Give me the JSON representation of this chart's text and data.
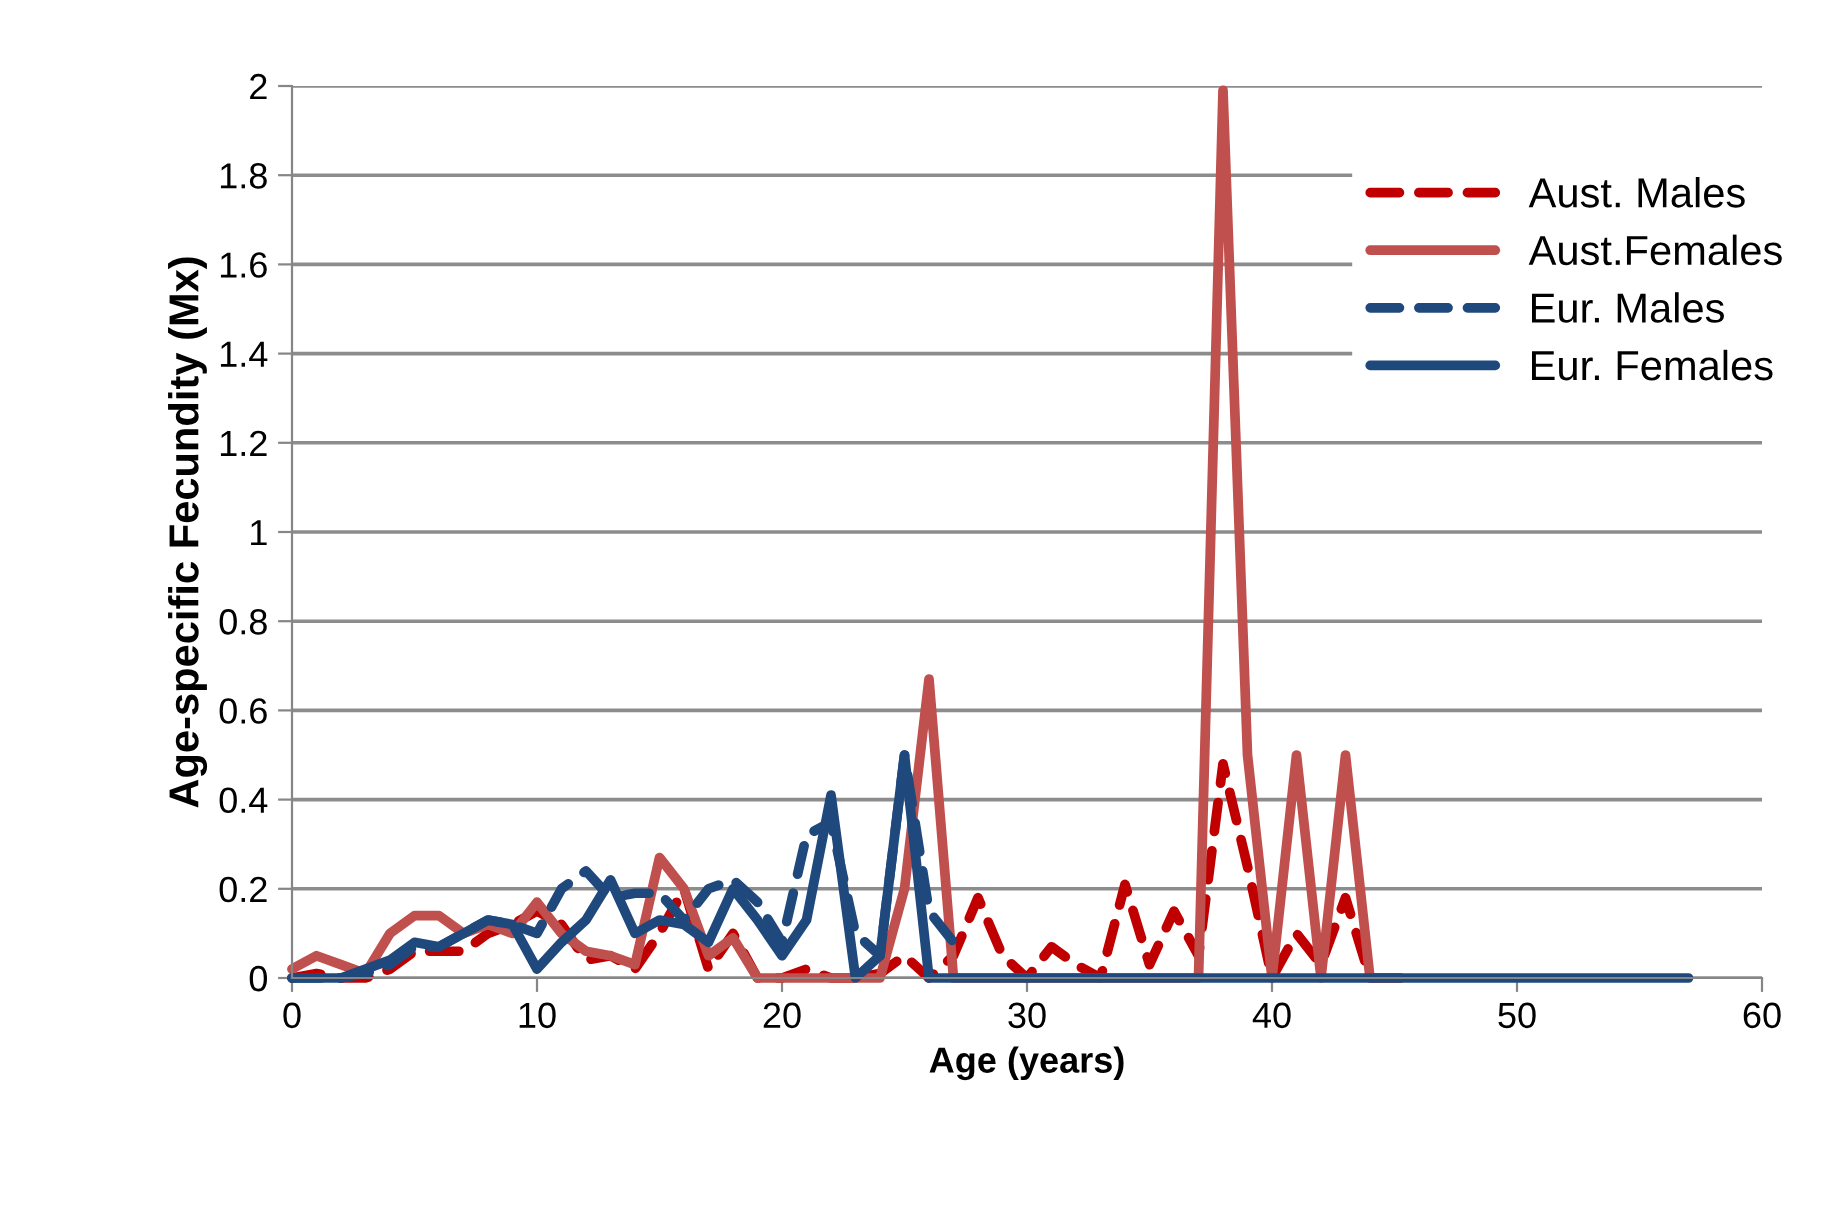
{
  "chart_data": {
    "type": "line",
    "xlabel": "Age (years)",
    "ylabel": "Age-specific Fecundity (Mx)",
    "xlim": [
      0,
      60
    ],
    "xticks": [
      0,
      10,
      20,
      30,
      40,
      50,
      60
    ],
    "ylim": [
      0,
      2
    ],
    "yticks": [
      0,
      0.2,
      0.4,
      0.6,
      0.8,
      1,
      1.2,
      1.4,
      1.6,
      1.8,
      2
    ],
    "grid": "y",
    "legend": "top right",
    "marker": "none",
    "series": [
      {
        "name": "Aust. Males",
        "color": "#c00000",
        "line_style": "dashed",
        "x": [
          0,
          1,
          2,
          3,
          4,
          5,
          6,
          7,
          8,
          9,
          10,
          11,
          12,
          13,
          14,
          15,
          16,
          17,
          18,
          19,
          20,
          21,
          22,
          23,
          24,
          25,
          26,
          27,
          28,
          29,
          30,
          31,
          32,
          33,
          34,
          35,
          36,
          37,
          38,
          39,
          40,
          41,
          42,
          43,
          44,
          45,
          46
        ],
        "values": [
          0,
          0.01,
          0,
          0,
          0.02,
          0.06,
          0.06,
          0.06,
          0.1,
          0.12,
          0.15,
          0.12,
          0.04,
          0.05,
          0.02,
          0.1,
          0.2,
          0.02,
          0.1,
          0,
          0,
          0.02,
          0,
          0,
          0.01,
          0.05,
          0,
          0.05,
          0.18,
          0.05,
          0,
          0.07,
          0.03,
          0,
          0.21,
          0.03,
          0.15,
          0.05,
          0.48,
          0.25,
          0,
          0.1,
          0.03,
          0.18,
          0,
          0,
          0
        ]
      },
      {
        "name": "Aust.Females",
        "color": "#c0504d",
        "line_style": "solid",
        "x": [
          0,
          1,
          2,
          3,
          4,
          5,
          6,
          7,
          8,
          9,
          10,
          11,
          12,
          13,
          14,
          15,
          16,
          17,
          18,
          19,
          20,
          21,
          22,
          23,
          24,
          25,
          26,
          27,
          28,
          29,
          30,
          31,
          32,
          33,
          34,
          35,
          36,
          37,
          38,
          39,
          40,
          41,
          42,
          43,
          44,
          45
        ],
        "values": [
          0.02,
          0.05,
          0.03,
          0.01,
          0.1,
          0.14,
          0.14,
          0.1,
          0.12,
          0.1,
          0.17,
          0.1,
          0.06,
          0.05,
          0.03,
          0.27,
          0.2,
          0.05,
          0.09,
          0,
          0,
          0,
          0,
          0,
          0,
          0.2,
          0.67,
          0,
          0,
          0,
          0,
          0,
          0,
          0,
          0,
          0,
          0,
          0,
          1.99,
          0.5,
          0,
          0.5,
          0,
          0.5,
          0,
          0
        ]
      },
      {
        "name": "Eur. Males",
        "color": "#1f497d",
        "line_style": "dashed",
        "x": [
          0,
          1,
          2,
          3,
          4,
          5,
          6,
          7,
          8,
          9,
          10,
          11,
          12,
          13,
          14,
          15,
          16,
          17,
          18,
          19,
          20,
          21,
          22,
          23,
          24,
          25,
          26,
          27
        ],
        "values": [
          0,
          0,
          0,
          0.01,
          0.03,
          0.07,
          0.07,
          0.1,
          0.13,
          0.12,
          0.1,
          0.2,
          0.24,
          0.18,
          0.19,
          0.19,
          0.13,
          0.2,
          0.22,
          0.17,
          0.08,
          0.32,
          0.35,
          0.1,
          0.05,
          0.5,
          0.15,
          0.08
        ]
      },
      {
        "name": "Eur. Females",
        "color": "#1f497d",
        "line_style": "solid",
        "x": [
          0,
          1,
          2,
          3,
          4,
          5,
          6,
          7,
          8,
          9,
          10,
          11,
          12,
          13,
          14,
          15,
          16,
          17,
          18,
          19,
          20,
          21,
          22,
          23,
          24,
          25,
          26,
          27,
          28,
          29,
          30,
          31,
          32,
          33,
          34,
          35,
          36,
          37,
          38,
          39,
          40,
          41,
          42,
          43,
          44,
          45,
          46,
          47,
          48,
          49,
          50,
          51,
          52,
          53,
          54,
          55,
          56,
          57
        ],
        "values": [
          0,
          0,
          0,
          0.02,
          0.04,
          0.08,
          0.07,
          0.1,
          0.13,
          0.12,
          0.02,
          0.08,
          0.13,
          0.22,
          0.1,
          0.13,
          0.12,
          0.08,
          0.2,
          0.13,
          0.05,
          0.13,
          0.41,
          0,
          0.05,
          0.5,
          0,
          0,
          0,
          0,
          0,
          0,
          0,
          0,
          0,
          0,
          0,
          0,
          0,
          0,
          0,
          0,
          0,
          0,
          0,
          0,
          0,
          0,
          0,
          0,
          0,
          0,
          0,
          0,
          0,
          0,
          0,
          0
        ]
      }
    ]
  }
}
